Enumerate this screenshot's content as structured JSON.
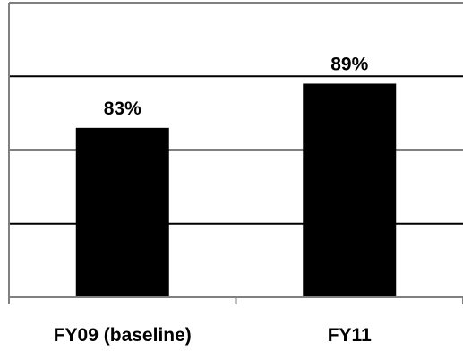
{
  "chart_data": {
    "type": "bar",
    "categories": [
      "FY09 (baseline)",
      "FY11"
    ],
    "values": [
      83,
      89
    ],
    "data_labels": [
      "83%",
      "89%"
    ],
    "ylim": [
      60,
      100
    ],
    "gridlines": [
      70,
      80,
      90,
      100
    ],
    "grid": true,
    "legend": "none",
    "title": "",
    "xlabel": "",
    "ylabel": "",
    "colors": {
      "bar": "#000000",
      "grid": "#000000",
      "axis": "#808080"
    }
  }
}
